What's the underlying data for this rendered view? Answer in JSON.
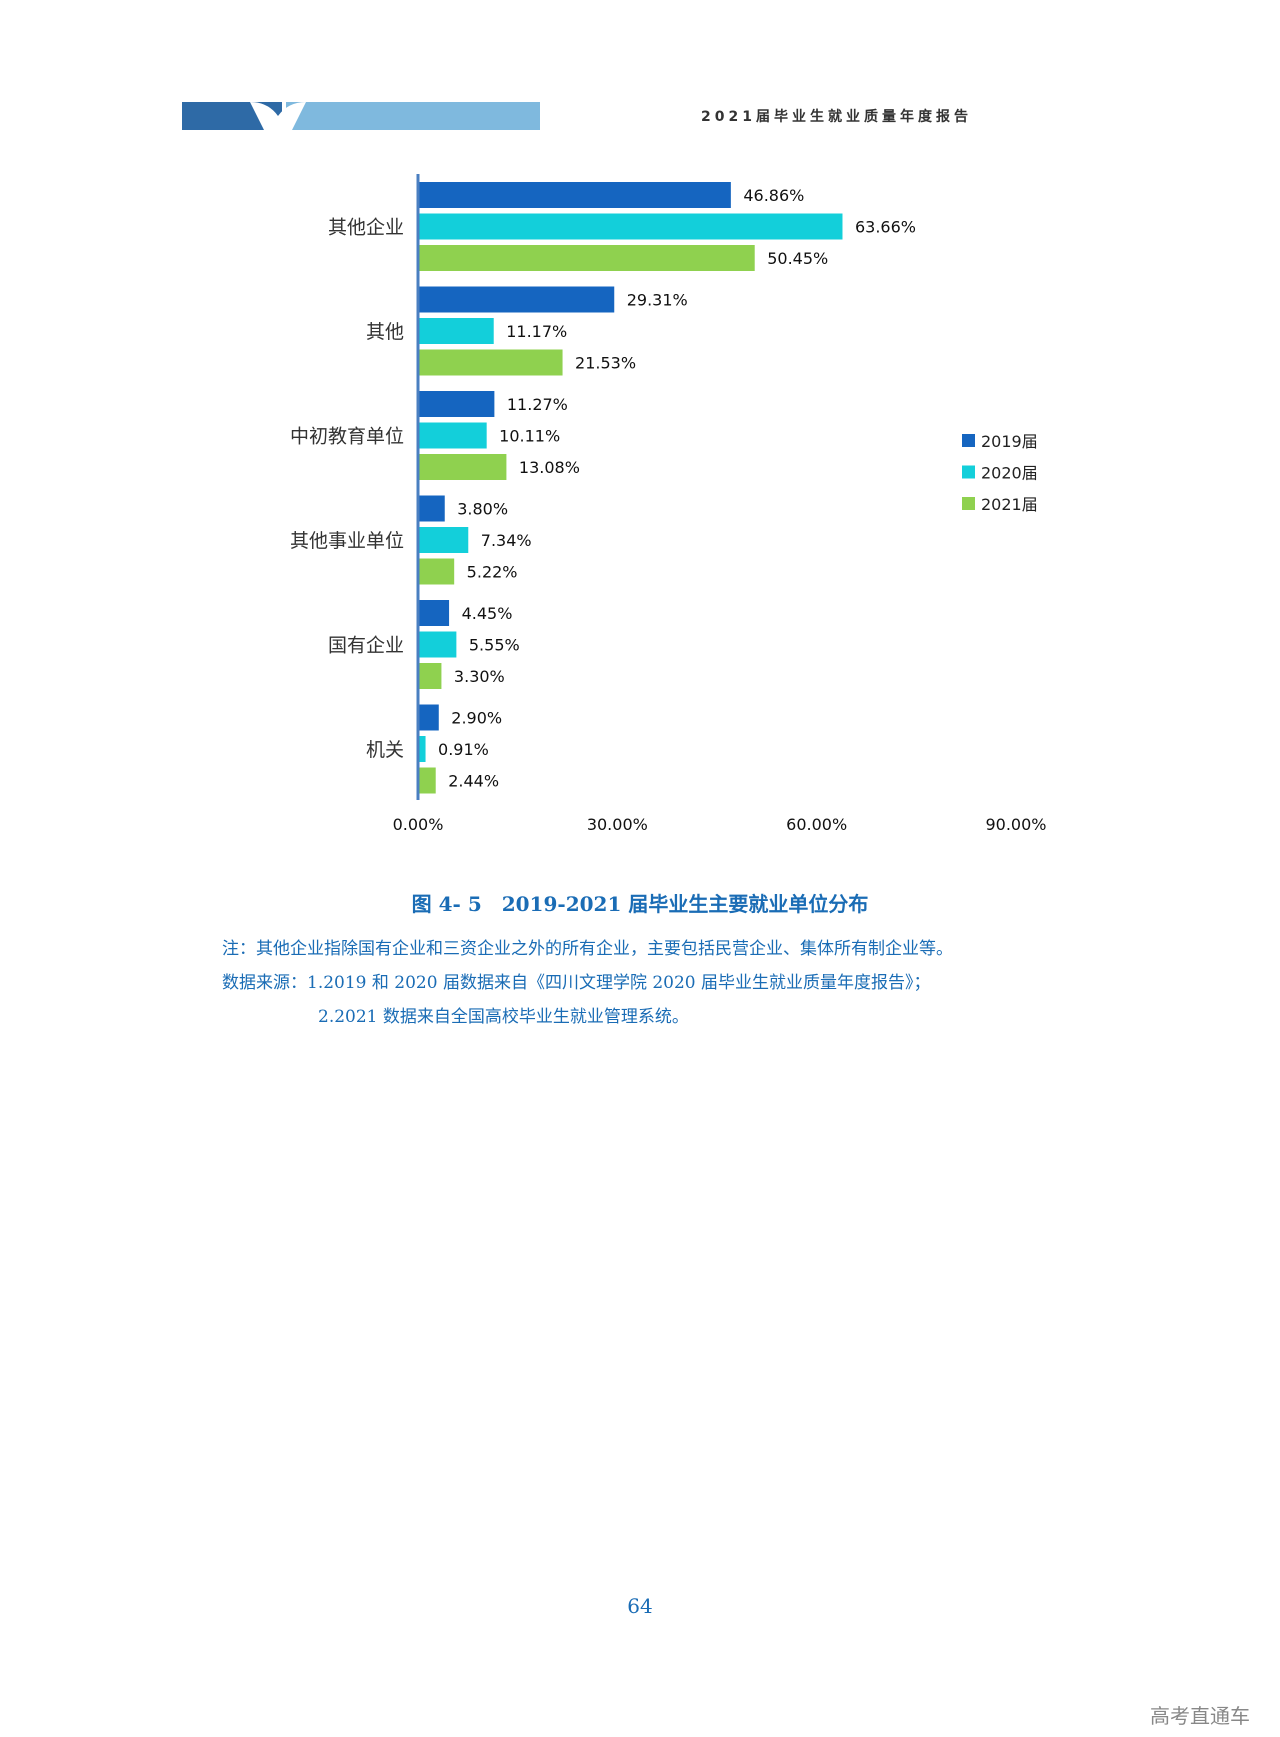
{
  "header": {
    "title": "2021届毕业生就业质量年度报告",
    "band_colors": {
      "dark": "#2e6aa6",
      "light": "#7fb9de"
    }
  },
  "chart_data": {
    "type": "bar",
    "orientation": "horizontal",
    "categories": [
      "其他企业",
      "其他",
      "中初教育单位",
      "其他事业单位",
      "国有企业",
      "机关"
    ],
    "series": [
      {
        "name": "2019届",
        "color": "#1565c0",
        "values": [
          46.86,
          29.31,
          11.27,
          3.8,
          4.45,
          2.9
        ],
        "labels": [
          "46.86%",
          "29.31%",
          "11.27%",
          "3.80%",
          "4.45%",
          "2.90%"
        ]
      },
      {
        "name": "2020届",
        "color": "#13cfda",
        "values": [
          63.66,
          11.17,
          10.11,
          7.34,
          5.55,
          0.91
        ],
        "labels": [
          "63.66%",
          "11.17%",
          "10.11%",
          "7.34%",
          "5.55%",
          "0.91%"
        ]
      },
      {
        "name": "2021届",
        "color": "#8fd14f",
        "values": [
          50.45,
          21.53,
          13.08,
          5.22,
          3.3,
          2.44
        ],
        "labels": [
          "50.45%",
          "21.53%",
          "13.08%",
          "5.22%",
          "3.30%",
          "2.44%"
        ]
      }
    ],
    "xticks": [
      "0.00%",
      "30.00%",
      "60.00%",
      "90.00%"
    ],
    "xlim": [
      0,
      90
    ],
    "grid": false,
    "legend": "right",
    "axis_color": "#4a7fc1"
  },
  "caption": "图 4- 5　2019-2021 届毕业生主要就业单位分布",
  "notes": {
    "line1": "注：其他企业指除国有企业和三资企业之外的所有企业，主要包括民营企业、集体所有制企业等。",
    "line2": "数据来源：1.2019 和 2020 届数据来自《四川文理学院 2020 届毕业生就业质量年度报告》；",
    "line3": "2.2021 数据来自全国高校毕业生就业管理系统。"
  },
  "page_number": "64",
  "watermark": "高考直通车"
}
